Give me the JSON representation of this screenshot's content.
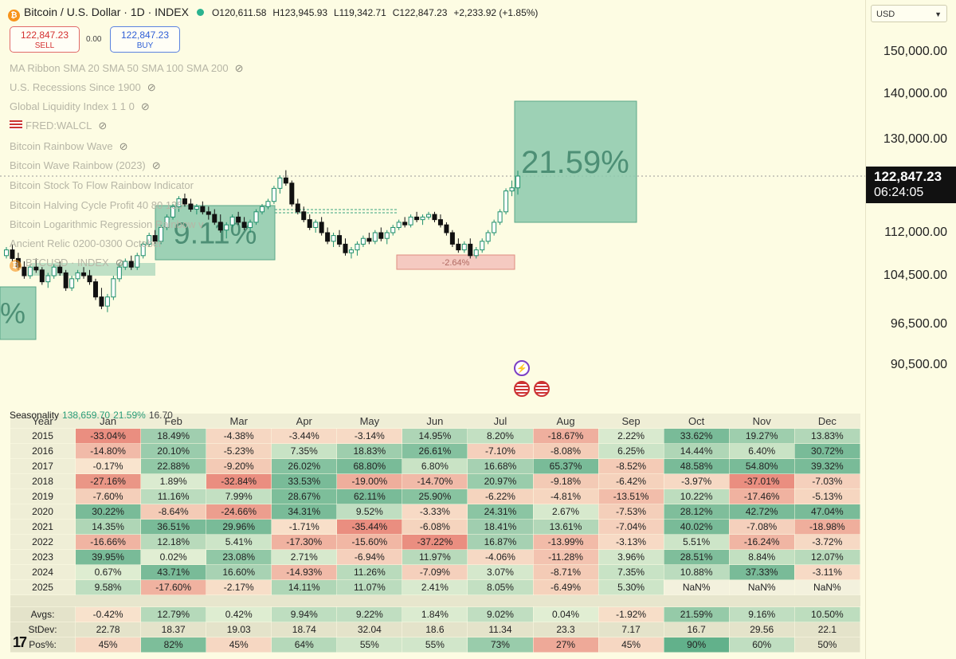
{
  "header": {
    "symbol_icon": "bitcoin-icon",
    "title": "Bitcoin / U.S. Dollar · 1D · INDEX",
    "open": "O120,611.58",
    "high": "H123,945.93",
    "low": "L119,342.71",
    "close": "C122,847.23",
    "change": "+2,233.92 (+1.85%)"
  },
  "trade": {
    "sell_price": "122,847.23",
    "sell_label": "SELL",
    "spread": "0.00",
    "buy_price": "122,847.23",
    "buy_label": "BUY"
  },
  "indicators": [
    "MA Ribbon SMA 20 SMA 50 SMA 100 SMA 200",
    "U.S. Recessions Since 1900",
    "Global Liquidity Index 1 1 0",
    "FRED:WALCL",
    "Bitcoin Rainbow Wave",
    "Bitcoin Wave Rainbow (2023)",
    "Bitcoin Stock To Flow Rainbow Indicator",
    "Bitcoin Halving Cycle Profit 40 80 135 ",
    "Bitcoin Logarithmic Regression Rainbow v",
    "Ancient Relic 0200-0300 October",
    "BTCUSD · INDEX"
  ],
  "price_axis": {
    "currency": "USD",
    "ticks": [
      "150,000.00",
      "140,000.00",
      "130,000.00",
      "112,000.00",
      "104,500.00",
      "96,500.00",
      "90,500.00"
    ],
    "current_price": "122,847.23",
    "countdown": "06:24:05"
  },
  "colors": {
    "background": "#fdfce3",
    "up_candle": "#1f8f6c",
    "down_candle": "#111111",
    "positive_box": "#8cc9ad",
    "negative_box": "#f4c4bd",
    "sell": "#d43030",
    "buy": "#2f5fd6"
  },
  "chart_data": {
    "type": "candlestick-with-seasonality",
    "price_scale_ticks": [
      150000,
      140000,
      130000,
      122847.23,
      112000,
      104500,
      96500,
      90500
    ],
    "monthly_boxes": [
      {
        "label": "%",
        "sign": "positive"
      },
      {
        "label": "9.11%",
        "sign": "positive"
      },
      {
        "label": "-2.64%",
        "sign": "negative"
      },
      {
        "label": "21.59%",
        "sign": "positive"
      }
    ],
    "candles_approx": [
      [
        108000,
        109500,
        107500,
        109000
      ],
      [
        109000,
        110000,
        107000,
        107500
      ],
      [
        107500,
        108500,
        105500,
        106000
      ],
      [
        106000,
        107000,
        104000,
        104500
      ],
      [
        104500,
        106500,
        104000,
        106000
      ],
      [
        106000,
        107500,
        105000,
        105500
      ],
      [
        105500,
        106000,
        103000,
        103500
      ],
      [
        103500,
        105000,
        102500,
        104500
      ],
      [
        104500,
        106500,
        104000,
        106000
      ],
      [
        106000,
        107000,
        104500,
        105000
      ],
      [
        105000,
        105500,
        102000,
        102500
      ],
      [
        102500,
        104500,
        102000,
        104000
      ],
      [
        104000,
        105500,
        103500,
        105000
      ],
      [
        105000,
        106000,
        104000,
        104500
      ],
      [
        104500,
        105500,
        103000,
        103500
      ],
      [
        103500,
        104000,
        100500,
        101000
      ],
      [
        101000,
        102500,
        99000,
        99500
      ],
      [
        99500,
        101500,
        98500,
        101000
      ],
      [
        101000,
        104500,
        100500,
        104000
      ],
      [
        104000,
        106500,
        103500,
        106000
      ],
      [
        106000,
        107500,
        105500,
        107000
      ],
      [
        107000,
        108000,
        105500,
        106000
      ],
      [
        106000,
        108500,
        105500,
        108000
      ],
      [
        108000,
        110500,
        107500,
        110000
      ],
      [
        110000,
        112000,
        109500,
        111500
      ],
      [
        111500,
        112500,
        110000,
        110500
      ],
      [
        110500,
        113500,
        110000,
        113000
      ],
      [
        113000,
        115500,
        112500,
        115000
      ],
      [
        115000,
        117500,
        114500,
        117000
      ],
      [
        117000,
        119000,
        116000,
        118500
      ],
      [
        118500,
        119500,
        117000,
        117500
      ],
      [
        117500,
        118500,
        116000,
        116500
      ],
      [
        116500,
        117500,
        115500,
        117000
      ],
      [
        117000,
        118000,
        115500,
        116000
      ],
      [
        116000,
        117000,
        114500,
        115500
      ],
      [
        115500,
        116500,
        113500,
        114000
      ],
      [
        114000,
        115500,
        112000,
        112500
      ],
      [
        112500,
        114000,
        111000,
        113500
      ],
      [
        113500,
        115500,
        113000,
        115000
      ],
      [
        115000,
        116000,
        113500,
        114000
      ],
      [
        114000,
        115000,
        112500,
        113000
      ],
      [
        113000,
        114500,
        112000,
        114000
      ],
      [
        114000,
        116500,
        113500,
        116000
      ],
      [
        116000,
        117500,
        115500,
        117000
      ],
      [
        117000,
        118500,
        116500,
        118000
      ],
      [
        118000,
        121000,
        117500,
        120500
      ],
      [
        120500,
        123000,
        119500,
        122500
      ],
      [
        122500,
        124000,
        121000,
        121500
      ],
      [
        121500,
        122000,
        117000,
        117500
      ],
      [
        117500,
        118500,
        115500,
        116000
      ],
      [
        116000,
        117000,
        114000,
        114500
      ],
      [
        114500,
        115500,
        112500,
        113000
      ],
      [
        113000,
        114500,
        112000,
        114000
      ],
      [
        114000,
        115000,
        111500,
        112000
      ],
      [
        112000,
        113000,
        110000,
        110500
      ],
      [
        110500,
        112000,
        109500,
        111500
      ],
      [
        111500,
        112500,
        109500,
        110000
      ],
      [
        110000,
        111000,
        108000,
        108500
      ],
      [
        108500,
        109500,
        107500,
        109000
      ],
      [
        109000,
        110500,
        108000,
        110000
      ],
      [
        110000,
        111500,
        109500,
        111000
      ],
      [
        111000,
        112000,
        110000,
        110500
      ],
      [
        110500,
        112500,
        110000,
        112000
      ],
      [
        112000,
        113000,
        110500,
        111000
      ],
      [
        111000,
        112500,
        110000,
        112000
      ],
      [
        112000,
        113500,
        111500,
        113000
      ],
      [
        113000,
        114500,
        112500,
        114000
      ],
      [
        114000,
        115000,
        113000,
        113500
      ],
      [
        113500,
        115500,
        113000,
        115000
      ],
      [
        115000,
        116000,
        114000,
        114500
      ],
      [
        114500,
        115500,
        113500,
        115000
      ],
      [
        115000,
        116000,
        114500,
        115500
      ],
      [
        115500,
        116000,
        114000,
        114500
      ],
      [
        114500,
        115500,
        113000,
        113500
      ],
      [
        113500,
        114000,
        111500,
        112000
      ],
      [
        112000,
        112500,
        109500,
        110000
      ],
      [
        110000,
        111000,
        108500,
        109000
      ],
      [
        109000,
        110500,
        108500,
        110000
      ],
      [
        110000,
        111000,
        107500,
        108000
      ],
      [
        108000,
        109500,
        107500,
        109000
      ],
      [
        109000,
        111000,
        108500,
        110500
      ],
      [
        110500,
        112500,
        110000,
        112000
      ],
      [
        112000,
        114500,
        111500,
        114000
      ],
      [
        114000,
        116500,
        113500,
        116000
      ],
      [
        116000,
        120500,
        115500,
        120000
      ],
      [
        120000,
        122000,
        119000,
        120600
      ],
      [
        120600,
        123900,
        119300,
        122847
      ]
    ],
    "seasonality": {
      "title": "Seasonality",
      "summary": [
        "138,659.70",
        "21.59%",
        "16.70"
      ],
      "columns": [
        "Year",
        "Jan",
        "Feb",
        "Mar",
        "Apr",
        "May",
        "Jun",
        "Jul",
        "Aug",
        "Sep",
        "Oct",
        "Nov",
        "Dec"
      ],
      "rows": [
        {
          "year": "2015",
          "values": [
            "-33.04%",
            "18.49%",
            "-4.38%",
            "-3.44%",
            "-3.14%",
            "14.95%",
            "8.20%",
            "-18.67%",
            "2.22%",
            "33.62%",
            "19.27%",
            "13.83%"
          ]
        },
        {
          "year": "2016",
          "values": [
            "-14.80%",
            "20.10%",
            "-5.23%",
            "7.35%",
            "18.83%",
            "26.61%",
            "-7.10%",
            "-8.08%",
            "6.25%",
            "14.44%",
            "6.40%",
            "30.72%"
          ]
        },
        {
          "year": "2017",
          "values": [
            "-0.17%",
            "22.88%",
            "-9.20%",
            "26.02%",
            "68.80%",
            "6.80%",
            "16.68%",
            "65.37%",
            "-8.52%",
            "48.58%",
            "54.80%",
            "39.32%"
          ]
        },
        {
          "year": "2018",
          "values": [
            "-27.16%",
            "1.89%",
            "-32.84%",
            "33.53%",
            "-19.00%",
            "-14.70%",
            "20.97%",
            "-9.18%",
            "-6.42%",
            "-3.97%",
            "-37.01%",
            "-7.03%"
          ]
        },
        {
          "year": "2019",
          "values": [
            "-7.60%",
            "11.16%",
            "7.99%",
            "28.67%",
            "62.11%",
            "25.90%",
            "-6.22%",
            "-4.81%",
            "-13.51%",
            "10.22%",
            "-17.46%",
            "-5.13%"
          ]
        },
        {
          "year": "2020",
          "values": [
            "30.22%",
            "-8.64%",
            "-24.66%",
            "34.31%",
            "9.52%",
            "-3.33%",
            "24.31%",
            "2.67%",
            "-7.53%",
            "28.12%",
            "42.72%",
            "47.04%"
          ]
        },
        {
          "year": "2021",
          "values": [
            "14.35%",
            "36.51%",
            "29.96%",
            "-1.71%",
            "-35.44%",
            "-6.08%",
            "18.41%",
            "13.61%",
            "-7.04%",
            "40.02%",
            "-7.08%",
            "-18.98%"
          ]
        },
        {
          "year": "2022",
          "values": [
            "-16.66%",
            "12.18%",
            "5.41%",
            "-17.30%",
            "-15.60%",
            "-37.22%",
            "16.87%",
            "-13.99%",
            "-3.13%",
            "5.51%",
            "-16.24%",
            "-3.72%"
          ]
        },
        {
          "year": "2023",
          "values": [
            "39.95%",
            "0.02%",
            "23.08%",
            "2.71%",
            "-6.94%",
            "11.97%",
            "-4.06%",
            "-11.28%",
            "3.96%",
            "28.51%",
            "8.84%",
            "12.07%"
          ]
        },
        {
          "year": "2024",
          "values": [
            "0.67%",
            "43.71%",
            "16.60%",
            "-14.93%",
            "11.26%",
            "-7.09%",
            "3.07%",
            "-8.71%",
            "7.35%",
            "10.88%",
            "37.33%",
            "-3.11%"
          ]
        },
        {
          "year": "2025",
          "values": [
            "9.58%",
            "-17.60%",
            "-2.17%",
            "14.11%",
            "11.07%",
            "2.41%",
            "8.05%",
            "-6.49%",
            "5.30%",
            "NaN%",
            "NaN%",
            "NaN%"
          ]
        }
      ],
      "stats": [
        {
          "label": "Avgs:",
          "values": [
            "-0.42%",
            "12.79%",
            "0.42%",
            "9.94%",
            "9.22%",
            "1.84%",
            "9.02%",
            "0.04%",
            "-1.92%",
            "21.59%",
            "9.16%",
            "10.50%"
          ]
        },
        {
          "label": "StDev:",
          "values": [
            "22.78",
            "18.37",
            "19.03",
            "18.74",
            "32.04",
            "18.6",
            "11.34",
            "23.3",
            "7.17",
            "16.7",
            "29.56",
            "22.1"
          ]
        },
        {
          "label": "Pos%:",
          "values": [
            "45%",
            "82%",
            "45%",
            "64%",
            "55%",
            "55%",
            "73%",
            "27%",
            "45%",
            "90%",
            "60%",
            "50%"
          ]
        }
      ]
    }
  }
}
